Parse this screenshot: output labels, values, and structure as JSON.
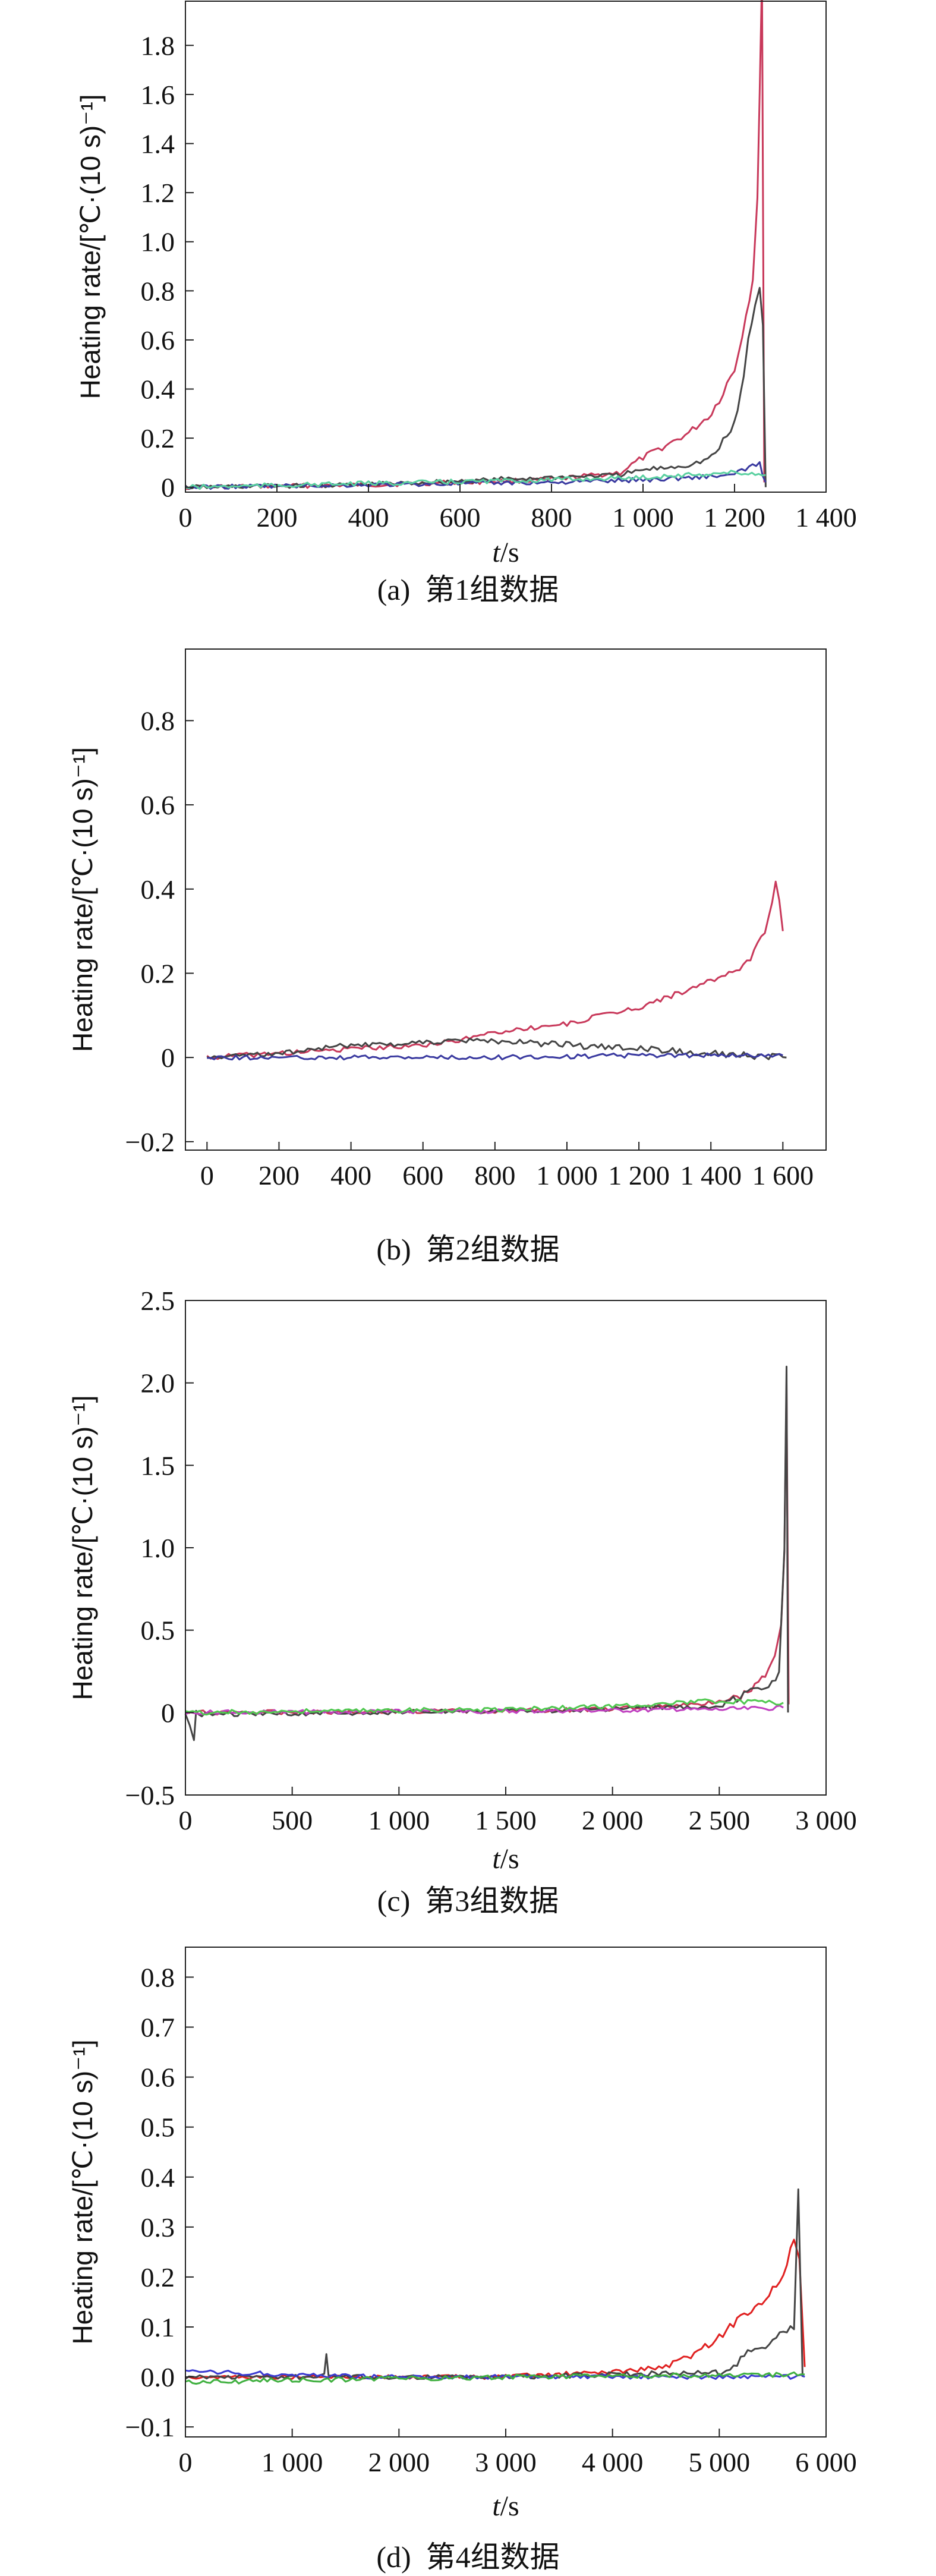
{
  "chart_data": [
    {
      "type": "line",
      "caption": "(a)  第1组数据",
      "ylabel": "Heating rate/[℃·(10 s)⁻¹]",
      "xlabel": "t/s",
      "xlim": [
        0,
        1400
      ],
      "ylim": [
        -0.02,
        1.98
      ],
      "xticks": [
        0,
        200,
        400,
        600,
        800,
        1000,
        1200,
        1400
      ],
      "xtick_labels": [
        "0",
        "200",
        "400",
        "600",
        "800",
        "1 000",
        "1 200",
        "1 400"
      ],
      "yticks": [
        0,
        0.2,
        0.4,
        0.6,
        0.8,
        1.0,
        1.2,
        1.4,
        1.6,
        1.8
      ],
      "ytick_labels": [
        "0",
        "0.2",
        "0.4",
        "0.6",
        "0.8",
        "1.0",
        "1.2",
        "1.4",
        "1.6",
        "1.8"
      ],
      "series": [
        {
          "color": "#c8385a",
          "x": [
            0,
            400,
            800,
            950,
            1000,
            1050,
            1100,
            1150,
            1200,
            1225,
            1240,
            1250,
            1255,
            1260,
            1265
          ],
          "y": [
            0.0,
            0.01,
            0.03,
            0.06,
            0.12,
            0.17,
            0.22,
            0.3,
            0.48,
            0.7,
            0.85,
            1.2,
            1.6,
            1.95,
            0.02
          ]
        },
        {
          "color": "#444444",
          "x": [
            0,
            400,
            800,
            950,
            1000,
            1100,
            1150,
            1200,
            1220,
            1230,
            1245,
            1255,
            1262,
            1268
          ],
          "y": [
            0.0,
            0.01,
            0.04,
            0.05,
            0.07,
            0.09,
            0.12,
            0.25,
            0.45,
            0.6,
            0.75,
            0.8,
            0.7,
            0.0
          ]
        },
        {
          "color": "#3a3aa0",
          "x": [
            0,
            400,
            800,
            1000,
            1200,
            1255,
            1268
          ],
          "y": [
            0.0,
            0.01,
            0.02,
            0.03,
            0.05,
            0.1,
            0.02
          ]
        },
        {
          "color": "#5ad0a0",
          "x": [
            0,
            400,
            800,
            1000,
            1200,
            1268
          ],
          "y": [
            0.0,
            0.015,
            0.03,
            0.04,
            0.06,
            0.05
          ]
        }
      ]
    },
    {
      "type": "line",
      "caption": "(b)  第2组数据",
      "ylabel": "Heating rate/[℃·(10 s)⁻¹]",
      "xlabel": "",
      "xlim": [
        -60,
        1720
      ],
      "ylim": [
        -0.22,
        0.97
      ],
      "xticks": [
        0,
        200,
        400,
        600,
        800,
        1000,
        1200,
        1400,
        1600
      ],
      "xtick_labels": [
        "0",
        "200",
        "400",
        "600",
        "800",
        "1 000",
        "1 200",
        "1 400",
        "1 600"
      ],
      "yticks": [
        -0.2,
        0,
        0.2,
        0.4,
        0.6,
        0.8
      ],
      "ytick_labels": [
        "−0.2",
        "0",
        "0.2",
        "0.4",
        "0.6",
        "0.8"
      ],
      "series": [
        {
          "color": "#c8385a",
          "x": [
            0,
            400,
            600,
            700,
            800,
            900,
            1000,
            1100,
            1200,
            1300,
            1400,
            1450,
            1500,
            1550,
            1580,
            1600
          ],
          "y": [
            0.0,
            0.02,
            0.03,
            0.04,
            0.06,
            0.07,
            0.08,
            0.1,
            0.12,
            0.15,
            0.18,
            0.2,
            0.22,
            0.3,
            0.42,
            0.3
          ]
        },
        {
          "color": "#444444",
          "x": [
            0,
            200,
            300,
            400,
            500,
            600,
            700,
            800,
            1600,
            1610
          ],
          "y": [
            0.0,
            0.01,
            0.02,
            0.03,
            0.03,
            0.035,
            0.04,
            0.04,
            0.0,
            0.0
          ]
        },
        {
          "color": "#3a3aa0",
          "x": [
            0,
            400,
            800,
            1200,
            1600
          ],
          "y": [
            0.0,
            0.0,
            0.0,
            0.005,
            0.005
          ]
        }
      ]
    },
    {
      "type": "line",
      "caption": "(c)  第3组数据",
      "ylabel": "Heating rate/[℃·(10 s)⁻¹]",
      "xlabel": "t/s",
      "xlim": [
        0,
        3000
      ],
      "ylim": [
        -0.5,
        2.5
      ],
      "xticks": [
        0,
        500,
        1000,
        1500,
        2000,
        2500,
        3000
      ],
      "xtick_labels": [
        "0",
        "500",
        "1 000",
        "1 500",
        "2 000",
        "2 500",
        "3 000"
      ],
      "yticks": [
        -0.5,
        0,
        0.5,
        1.0,
        1.5,
        2.0,
        2.5
      ],
      "ytick_labels": [
        "−0.5",
        "0",
        "0.5",
        "1.0",
        "1.5",
        "2.0",
        "2.5"
      ],
      "series": [
        {
          "color": "#c8385a",
          "x": [
            0,
            1500,
            2000,
            2400,
            2600,
            2700,
            2760,
            2790,
            2805,
            2815,
            2825
          ],
          "y": [
            0.0,
            0.01,
            0.02,
            0.05,
            0.1,
            0.2,
            0.35,
            0.5,
            1.0,
            1.9,
            0.05
          ]
        },
        {
          "color": "#444444",
          "x": [
            0,
            40,
            50,
            60,
            1000,
            2000,
            2500,
            2780,
            2805,
            2815,
            2822
          ],
          "y": [
            0.0,
            -0.15,
            0.0,
            -0.01,
            0.0,
            0.02,
            0.04,
            0.2,
            0.9,
            2.05,
            0.0
          ]
        },
        {
          "color": "#c040c0",
          "x": [
            0,
            1500,
            2500,
            2800
          ],
          "y": [
            0.0,
            0.01,
            0.02,
            0.03
          ]
        },
        {
          "color": "#50c850",
          "x": [
            0,
            1500,
            2000,
            2500,
            2800
          ],
          "y": [
            0.0,
            0.02,
            0.04,
            0.07,
            0.06
          ]
        }
      ]
    },
    {
      "type": "line",
      "caption": "(d)  第4组数据",
      "ylabel": "Heating rate/[℃·(10 s)⁻¹]",
      "xlabel": "t/s",
      "xlim": [
        0,
        6000
      ],
      "ylim": [
        -0.12,
        0.86
      ],
      "xticks": [
        0,
        1000,
        2000,
        3000,
        4000,
        5000,
        6000
      ],
      "xtick_labels": [
        "0",
        "1 000",
        "2 000",
        "3 000",
        "4 000",
        "5 000",
        "6 000"
      ],
      "yticks": [
        -0.1,
        0.0,
        0.1,
        0.2,
        0.3,
        0.4,
        0.5,
        0.6,
        0.7,
        0.8
      ],
      "ytick_labels": [
        "−0.1",
        "0.0",
        "0.1",
        "0.2",
        "0.3",
        "0.4",
        "0.5",
        "0.6",
        "0.7",
        "0.8"
      ],
      "series": [
        {
          "color": "#e02020",
          "x": [
            0,
            1000,
            2000,
            3000,
            4000,
            4500,
            4800,
            5000,
            5200,
            5400,
            5600,
            5700,
            5750,
            5800
          ],
          "y": [
            0.0,
            0.0,
            0.0,
            0.0,
            0.01,
            0.02,
            0.05,
            0.08,
            0.12,
            0.15,
            0.2,
            0.28,
            0.22,
            0.02
          ]
        },
        {
          "color": "#444444",
          "x": [
            0,
            1300,
            1320,
            1340,
            3000,
            5000,
            5700,
            5740,
            5780
          ],
          "y": [
            0.0,
            0.0,
            0.05,
            0.0,
            0.0,
            0.01,
            0.1,
            0.38,
            0.0
          ]
        },
        {
          "color": "#3a3ad0",
          "x": [
            0,
            2000,
            4000,
            5800
          ],
          "y": [
            0.01,
            0.0,
            0.0,
            0.0
          ]
        },
        {
          "color": "#40b040",
          "x": [
            0,
            3000,
            5800
          ],
          "y": [
            -0.01,
            0.0,
            0.005
          ]
        }
      ]
    }
  ]
}
